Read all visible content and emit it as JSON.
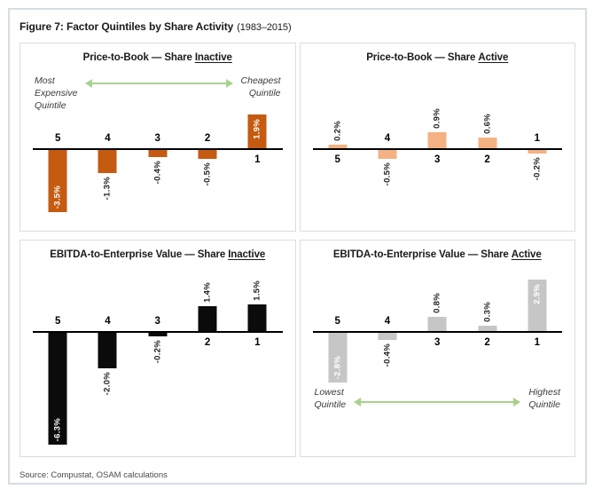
{
  "title": {
    "main": "Figure 7: Factor Quintiles by Share Activity",
    "period": "(1983–2015)"
  },
  "footer": {
    "source": "Source: Compustat, OSAM calculations"
  },
  "colors": {
    "figure-border": "#d7dde2",
    "panel-border": "#dcdcdc",
    "axis": "#000000",
    "arrow": "#A9D18E",
    "source-text": "#4a4a4a",
    "ptb-inactive-bar": "#C55A11",
    "ptb-active-bar": "#F4B183",
    "ev-inactive-bar": "#0b0b0b",
    "ev-active-bar": "#C6C6C6"
  },
  "chart_data": [
    {
      "type": "bar",
      "title_prefix": "Price-to-Book — Share",
      "title_underlined": "Inactive",
      "categories": [
        "5",
        "4",
        "3",
        "2",
        "1"
      ],
      "values": [
        -3.5,
        -1.3,
        -0.4,
        -0.5,
        1.9
      ],
      "labels": [
        "-3.5%",
        "-1.3%",
        "-0.4%",
        "-0.5%",
        "1.9%"
      ],
      "label_inside": [
        true,
        false,
        false,
        false,
        true
      ],
      "bar_color_key": "ptb-inactive-bar",
      "unit": "%",
      "ylim": [
        -4.5,
        2.5
      ],
      "grid": false,
      "annotation": {
        "position": "top",
        "left": "Most\nExpensive\nQuintile",
        "right": "Cheapest\nQuintile"
      }
    },
    {
      "type": "bar",
      "title_prefix": "Price-to-Book — Share",
      "title_underlined": "Active",
      "categories": [
        "5",
        "4",
        "3",
        "2",
        "1"
      ],
      "values": [
        0.2,
        -0.5,
        0.9,
        0.6,
        -0.2
      ],
      "labels": [
        "0.2%",
        "-0.5%",
        "0.9%",
        "0.6%",
        "-0.2%"
      ],
      "label_inside": [
        false,
        false,
        false,
        false,
        false
      ],
      "bar_color_key": "ptb-active-bar",
      "unit": "%",
      "ylim": [
        -4.5,
        2.5
      ],
      "grid": false,
      "annotation": null
    },
    {
      "type": "bar",
      "title_prefix": "EBITDA-to-Enterprise Value — Share",
      "title_underlined": "Inactive",
      "categories": [
        "5",
        "4",
        "3",
        "2",
        "1"
      ],
      "values": [
        -6.3,
        -2.0,
        -0.2,
        1.4,
        1.5
      ],
      "labels": [
        "-6.3%",
        "-2.0%",
        "-0.2%",
        "1.4%",
        "1.5%"
      ],
      "label_inside": [
        true,
        false,
        false,
        false,
        false
      ],
      "bar_color_key": "ev-inactive-bar",
      "unit": "%",
      "ylim": [
        -7.0,
        3.5
      ],
      "grid": false,
      "annotation": null
    },
    {
      "type": "bar",
      "title_prefix": "EBITDA-to-Enterprise Value — Share",
      "title_underlined": "Active",
      "categories": [
        "5",
        "4",
        "3",
        "2",
        "1"
      ],
      "values": [
        -2.8,
        -0.4,
        0.8,
        0.3,
        2.9
      ],
      "labels": [
        "-2.8%",
        "-0.4%",
        "0.8%",
        "0.3%",
        "2.9%"
      ],
      "label_inside": [
        true,
        false,
        false,
        false,
        true
      ],
      "bar_color_key": "ev-active-bar",
      "unit": "%",
      "ylim": [
        -7.0,
        3.5
      ],
      "grid": false,
      "annotation": {
        "position": "bottom",
        "left": "Lowest\nQuintile",
        "right": "Highest\nQuintile"
      }
    }
  ]
}
